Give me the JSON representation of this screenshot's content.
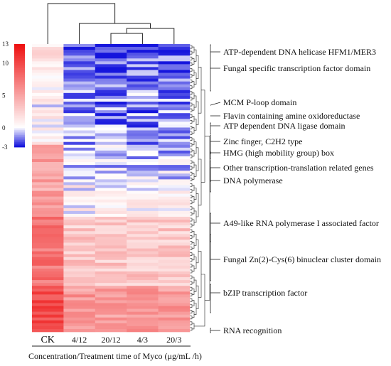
{
  "chart_data": {
    "type": "heatmap",
    "color_scale": {
      "ticks": [
        "13",
        "10",
        "5",
        "0",
        "-3"
      ],
      "colors": {
        "high": "#ee1111",
        "mid": "#ffffff",
        "low": "#1515dd"
      }
    },
    "columns": [
      "CK",
      "4/12",
      "20/12",
      "4/3",
      "20/3"
    ],
    "xlabel": "Concentration/Treatment time of Myco (μg/mL /h)",
    "annotations": [
      "ATP-dependent DNA helicase HFM1/MER3",
      "Fungal specific transcription factor domain",
      "MCM P-loop domain",
      "Flavin containing amine oxidoreductase",
      "ATP dependent DNA ligase domain",
      "Zinc finger, C2H2 type",
      "HMG (high mobility group) box",
      "Other transcription-translation related genes",
      "DNA polymerase",
      "A49-like RNA polymerase I associated factor",
      "Fungal Zn(2)-Cys(6) binuclear cluster domain",
      "bZIP transcription factor",
      "RNA recognition"
    ],
    "row_profile": {
      "row_count": 100,
      "segments": [
        {
          "rows": [
            0,
            3
          ],
          "CK": 2,
          "treated": -2.8
        },
        {
          "rows": [
            4,
            14
          ],
          "CK": 1,
          "treated": -2.0
        },
        {
          "rows": [
            15,
            34
          ],
          "CK": 0.5,
          "treated": -1.4
        },
        {
          "rows": [
            35,
            46
          ],
          "CK": 5.5,
          "treated": -0.7
        },
        {
          "rows": [
            47,
            59
          ],
          "CK": 5,
          "treated": 0.4
        },
        {
          "rows": [
            60,
            83
          ],
          "CK": 7.5,
          "treated": 3.0
        },
        {
          "rows": [
            84,
            99
          ],
          "CK": 10,
          "treated": 5.5
        }
      ]
    }
  }
}
